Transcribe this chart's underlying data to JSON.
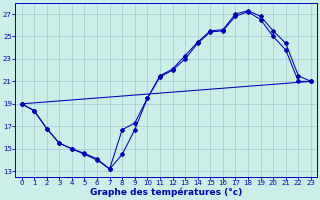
{
  "xlabel": "Graphe des températures (°c)",
  "bg_color": "#cceee8",
  "grid_color": "#99cccc",
  "line_color": "#0000bb",
  "xlim": [
    -0.5,
    23.5
  ],
  "ylim": [
    12.5,
    28.0
  ],
  "xticks": [
    0,
    1,
    2,
    3,
    4,
    5,
    6,
    7,
    8,
    9,
    10,
    11,
    12,
    13,
    14,
    15,
    16,
    17,
    18,
    19,
    20,
    21,
    22,
    23
  ],
  "yticks": [
    13,
    15,
    17,
    19,
    21,
    23,
    25,
    27
  ],
  "curve1_x": [
    0,
    1,
    2,
    3,
    4,
    5,
    6,
    7,
    8,
    9,
    10,
    11,
    12,
    13,
    14,
    15,
    16,
    17,
    18,
    19,
    20,
    21,
    22,
    23
  ],
  "curve1_y": [
    19.0,
    18.4,
    16.8,
    15.5,
    15.0,
    14.6,
    14.1,
    13.2,
    14.5,
    16.7,
    19.5,
    21.5,
    22.1,
    23.3,
    24.5,
    25.5,
    25.6,
    27.0,
    27.3,
    26.8,
    25.5,
    24.4,
    21.5,
    21.0
  ],
  "curve2_x": [
    0,
    1,
    2,
    3,
    4,
    5,
    6,
    7,
    8,
    9,
    10,
    11,
    12,
    13,
    14,
    15,
    16,
    17,
    18,
    19,
    20,
    21,
    22,
    23
  ],
  "curve2_y": [
    19.0,
    18.4,
    16.8,
    15.5,
    15.0,
    14.5,
    14.0,
    13.2,
    16.7,
    17.3,
    19.5,
    21.4,
    22.0,
    23.0,
    24.4,
    25.4,
    25.5,
    26.8,
    27.2,
    26.5,
    25.0,
    23.8,
    21.0,
    21.0
  ],
  "line_x": [
    0,
    23
  ],
  "line_y": [
    19.0,
    21.0
  ],
  "xlabel_fontsize": 6.5,
  "xlabel_fontweight": "bold",
  "tick_fontsize": 5.0,
  "linewidth": 0.75,
  "markersize": 2.0
}
